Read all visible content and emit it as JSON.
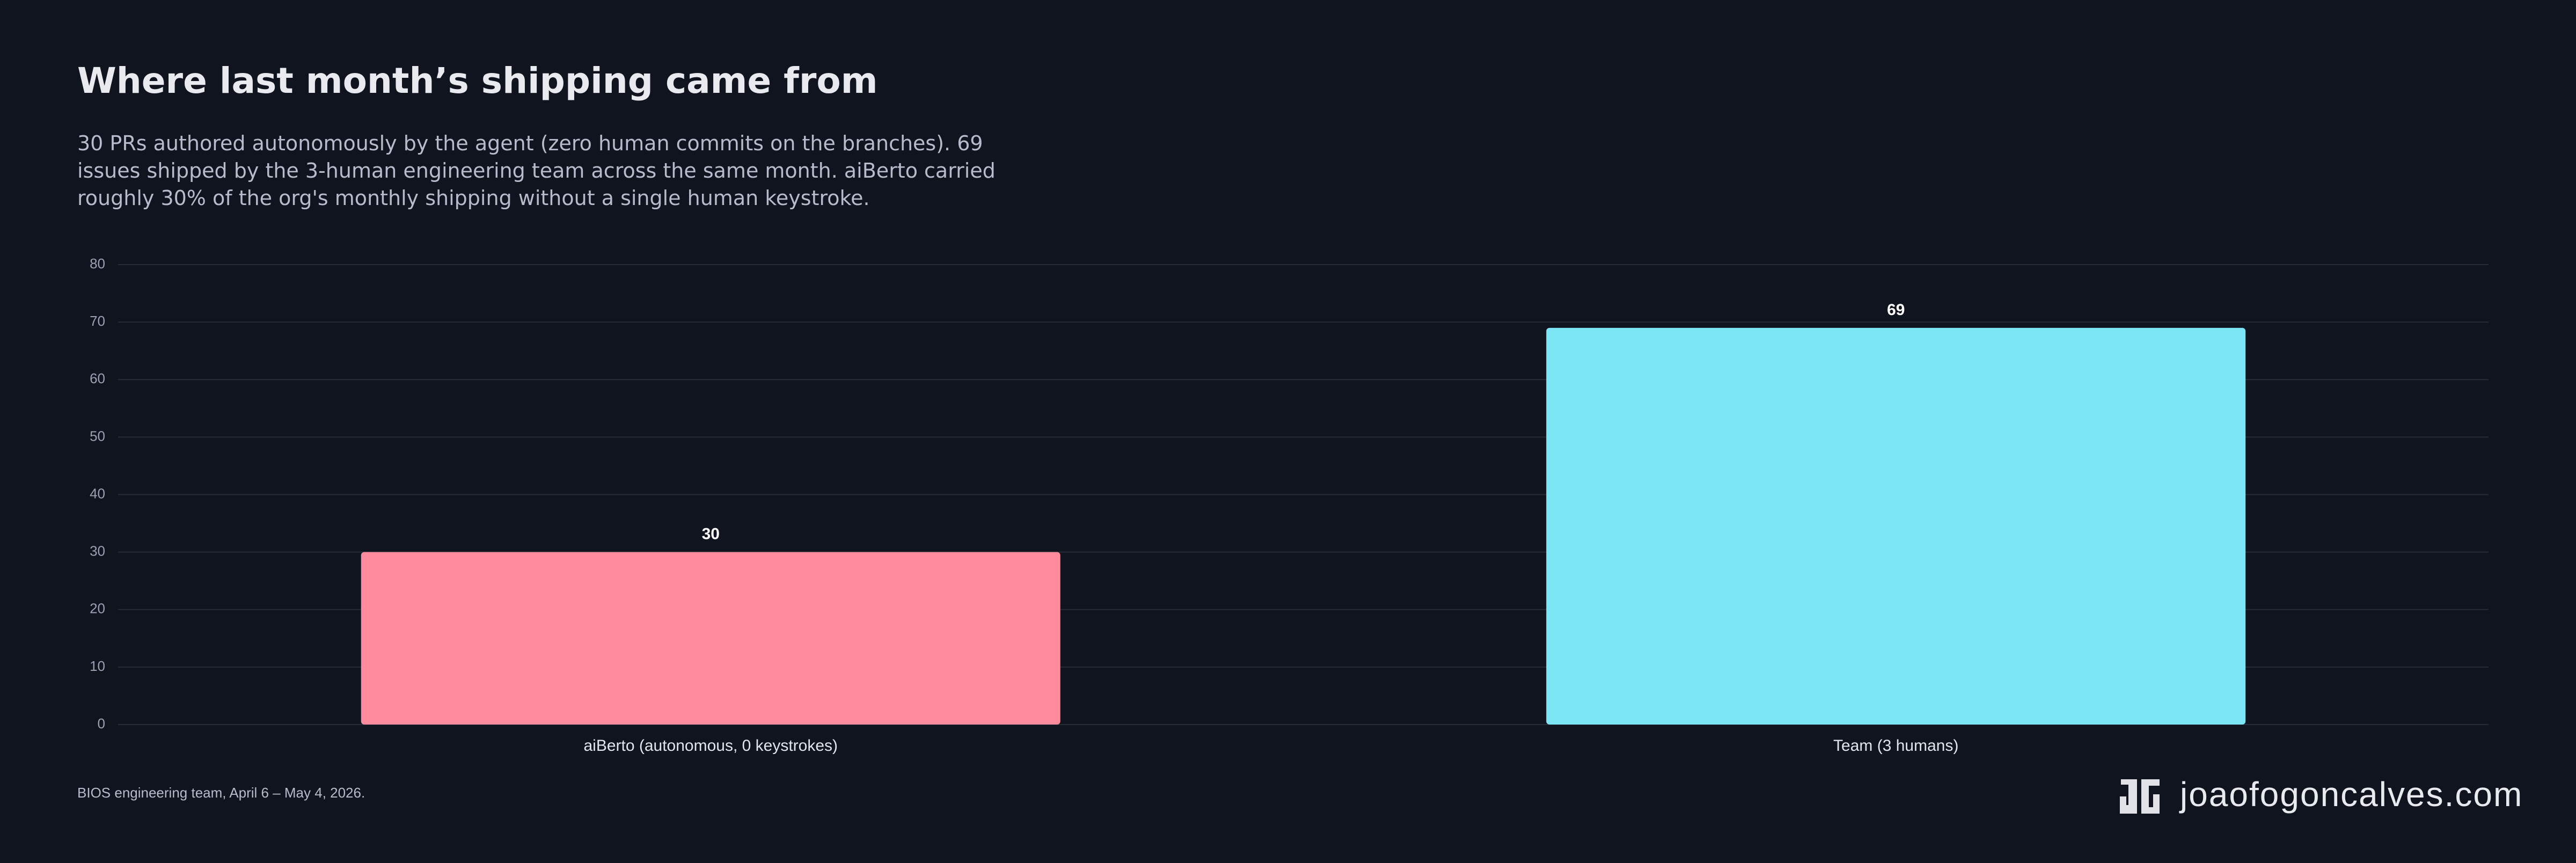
{
  "chart_data": {
    "type": "bar",
    "title": "Where last month’s shipping came from",
    "subtitle": "30 PRs authored autonomously by the agent (zero human commits on the branches). 69 issues shipped by the 3-human engineering team across the same month. aiBerto carried roughly 30% of the org's monthly shipping without a single human keystroke.",
    "categories": [
      "aiBerto (autonomous, 0 keystrokes)",
      "Team (3 humans)"
    ],
    "values": [
      30,
      69
    ],
    "colors": [
      "#ff8b9c",
      "#7de6f4"
    ],
    "ylim": [
      0,
      80
    ],
    "yticks": [
      0,
      10,
      20,
      30,
      40,
      50,
      60,
      70,
      80
    ],
    "grid": true,
    "source": "BIOS engineering team, April 6 – May 4, 2026.",
    "brand": "joaofogoncalves.com"
  }
}
